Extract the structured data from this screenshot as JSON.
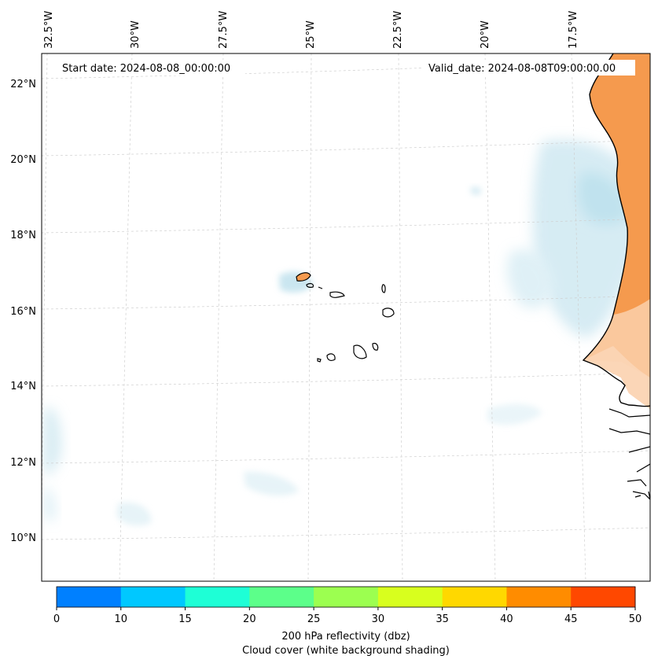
{
  "header": {
    "start_date": "Start date: 2024-08-08_00:00:00",
    "valid_date": "Valid_date: 2024-08-08T09:00:00.00"
  },
  "longitude_labels": [
    "32.5°W",
    "30°W",
    "27.5°W",
    "25°W",
    "22.5°W",
    "20°W",
    "17.5°W"
  ],
  "latitude_labels": [
    "22°N",
    "20°N",
    "18°N",
    "16°N",
    "14°N",
    "12°N",
    "10°N"
  ],
  "colorbar": {
    "ticks": [
      "0",
      "10",
      "15",
      "20",
      "25",
      "30",
      "35",
      "40",
      "45",
      "50"
    ],
    "colors": [
      "#0080ff",
      "#00c8ff",
      "#1effd6",
      "#5cff8a",
      "#9cff50",
      "#d8ff1e",
      "#ffd800",
      "#ff8c00",
      "#ff4800"
    ],
    "title": "200 hPa reflectivity (dbz)",
    "subtitle": "Cloud cover (white background shading)"
  },
  "colors": {
    "cloud": "#a8d8e8",
    "land_reflectivity": "#f59a4e",
    "coast": "#000000",
    "grid": "#c8c8c8"
  }
}
